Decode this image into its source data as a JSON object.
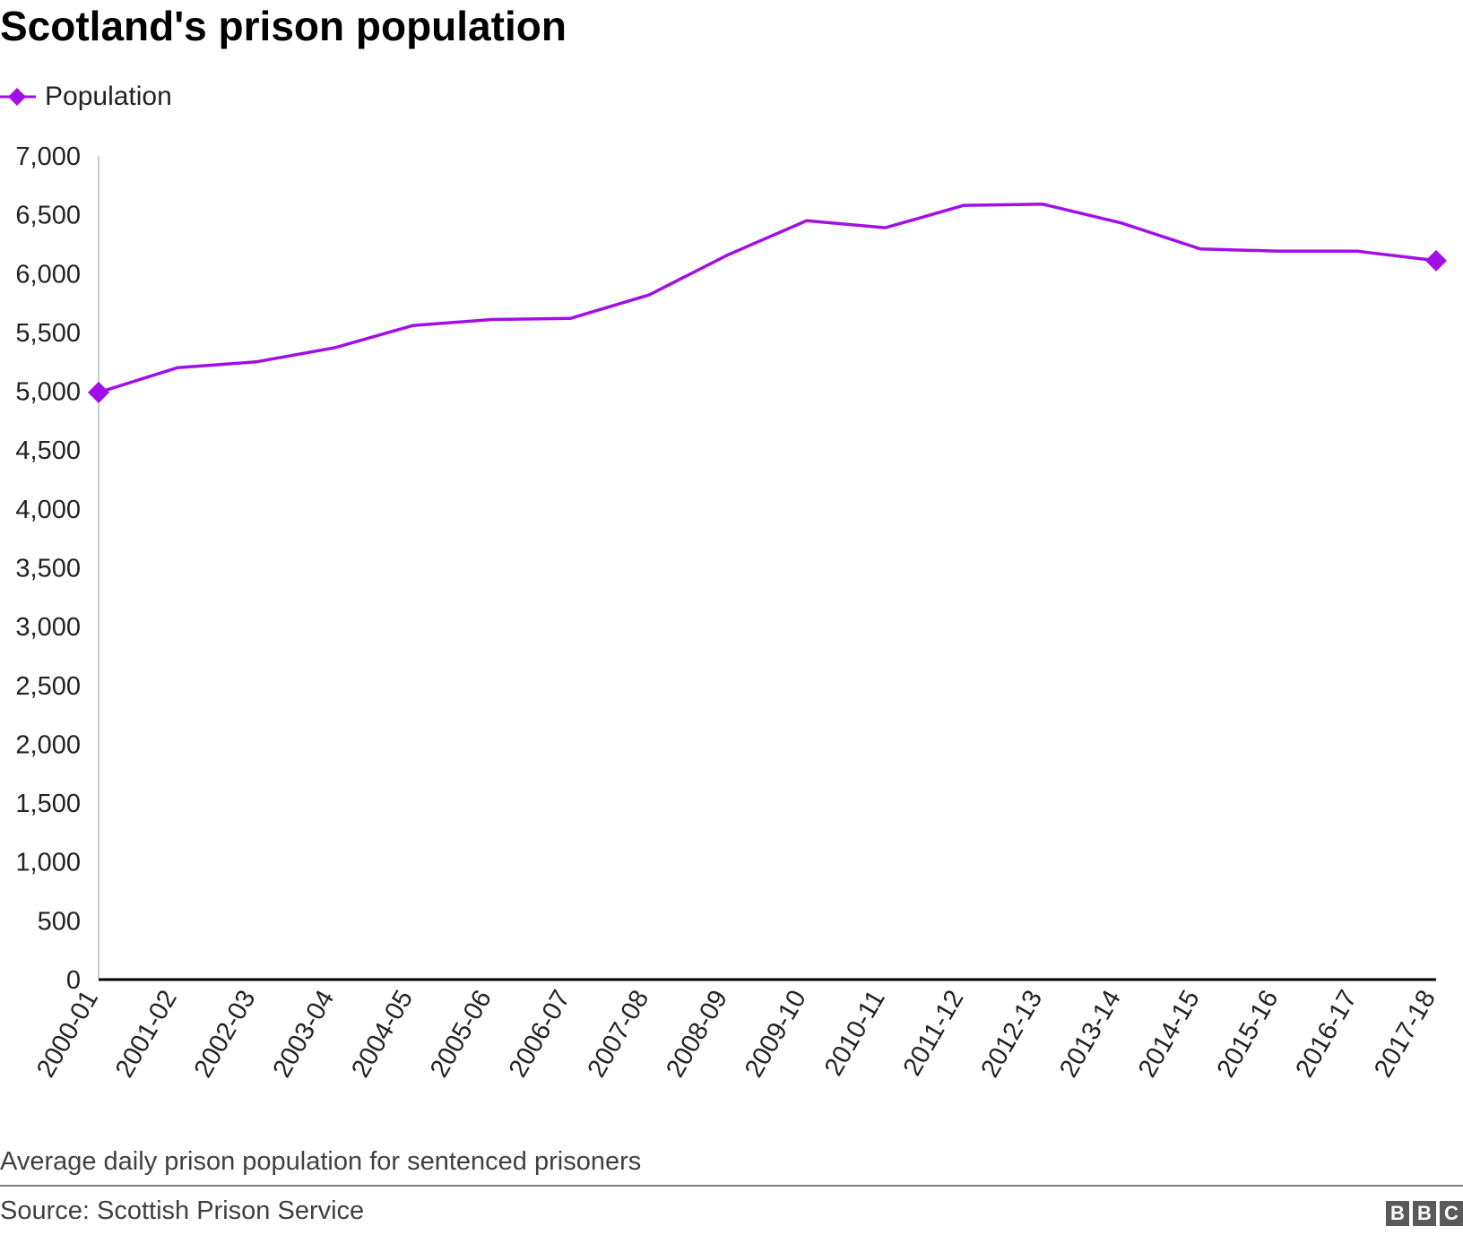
{
  "chart_data": {
    "type": "line",
    "title": "Scotland's prison population",
    "series": [
      {
        "name": "Population",
        "color": "#a10fe6",
        "values": [
          4990,
          5200,
          5250,
          5370,
          5560,
          5610,
          5620,
          5820,
          6160,
          6450,
          6390,
          6580,
          6590,
          6430,
          6210,
          6190,
          6190,
          6110
        ]
      }
    ],
    "categories": [
      "2000-01",
      "2001-02",
      "2002-03",
      "2003-04",
      "2004-05",
      "2005-06",
      "2006-07",
      "2007-08",
      "2008-09",
      "2009-10",
      "2010-11",
      "2011-12",
      "2012-13",
      "2013-14",
      "2014-15",
      "2015-16",
      "2016-17",
      "2017-18"
    ],
    "ylim": [
      0,
      7000
    ],
    "yticks": [
      0,
      500,
      1000,
      1500,
      2000,
      2500,
      3000,
      3500,
      4000,
      4500,
      5000,
      5500,
      6000,
      6500,
      7000
    ],
    "ytick_labels": [
      "0",
      "500",
      "1,000",
      "1,500",
      "2,000",
      "2,500",
      "3,000",
      "3,500",
      "4,000",
      "4,500",
      "5,000",
      "5,500",
      "6,000",
      "6,500",
      "7,000"
    ],
    "grid": false,
    "legend_position": "top-left",
    "markers": "first-and-last-points",
    "footnote": "Average daily prison population for sentenced prisoners",
    "source": "Source: Scottish Prison Service"
  },
  "branding": {
    "logo_letters": [
      "B",
      "B",
      "C"
    ]
  }
}
